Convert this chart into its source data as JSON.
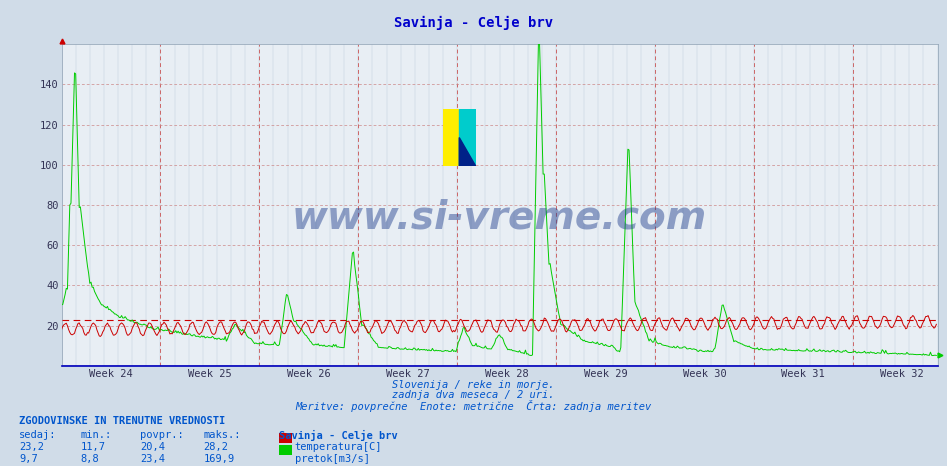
{
  "title": "Savinja - Celje brv",
  "title_color": "#0000cc",
  "bg_color": "#d0dce8",
  "plot_bg_color": "#e8eef4",
  "x_label_weeks": [
    "Week 24",
    "Week 25",
    "Week 26",
    "Week 27",
    "Week 28",
    "Week 29",
    "Week 30",
    "Week 31",
    "Week 32"
  ],
  "ylim": [
    0,
    160
  ],
  "yticks": [
    20,
    40,
    60,
    80,
    100,
    120,
    140
  ],
  "grid_color_h": "#cc8888",
  "grid_color_v_major": "#cc6666",
  "grid_color_v_minor": "#b8c8d8",
  "temp_color": "#cc0000",
  "flow_color": "#00cc00",
  "avg_line_color": "#cc0000",
  "avg_line_value": 23.0,
  "bottom_text1": "Slovenija / reke in morje.",
  "bottom_text2": "zadnja dva meseca / 2 uri.",
  "bottom_text3": "Meritve: povprečne  Enote: metrične  Črta: zadnja meritev",
  "text_color": "#0055cc",
  "watermark_text": "www.si-vreme.com",
  "watermark_color": "#1a3a8a",
  "watermark_alpha": 0.45,
  "legend_title": "Savinja - Celje brv",
  "legend_temp_label": "temperatura[C]",
  "legend_flow_label": "pretok[m3/s]",
  "table_header": "ZGODOVINSKE IN TRENUTNE VREDNOSTI",
  "table_cols": [
    "sedaj:",
    "min.:",
    "povpr.:",
    "maks.:"
  ],
  "temp_row": [
    "23,2",
    "11,7",
    "20,4",
    "28,2"
  ],
  "flow_row": [
    "9,7",
    "8,8",
    "23,4",
    "169,9"
  ],
  "n_points": 744,
  "n_weeks": 9,
  "pts_per_week": 84
}
